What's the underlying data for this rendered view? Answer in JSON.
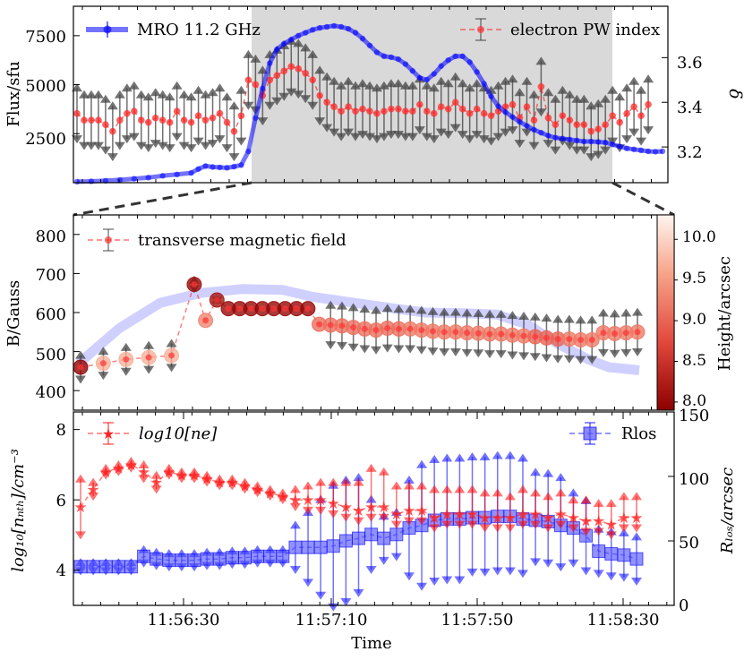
{
  "chart_data": [
    {
      "type": "line",
      "panel": "top",
      "ylabel_left": "Flux/sfu",
      "ylabel_right": "δ",
      "ylim_left": [
        0,
        9000
      ],
      "ylim_right": [
        3.04,
        3.83
      ],
      "yticks_left": [
        "2500",
        "5000",
        "7500"
      ],
      "yticks_right": [
        "3.2",
        "3.4",
        "3.6"
      ],
      "shaded_interval": [
        24,
        74
      ],
      "legend": {
        "left": "MRO 11.2 GHz",
        "right": "electron PW index"
      },
      "series": [
        {
          "name": "MRO 11.2 GHz",
          "color": "#0000ff",
          "x": [
            0,
            2,
            4,
            6,
            8,
            10,
            12,
            14,
            16,
            17,
            18,
            19,
            20,
            21,
            22,
            23,
            24,
            25,
            26,
            27,
            28,
            29,
            30,
            31,
            32,
            33,
            34,
            35,
            36,
            37,
            38,
            39,
            40,
            41,
            42,
            43,
            44,
            45,
            46,
            47,
            48,
            49,
            50,
            51,
            52,
            53,
            54,
            55,
            56,
            57,
            58,
            59,
            60,
            61,
            62,
            63,
            64,
            65,
            66,
            67,
            68,
            69,
            70,
            71,
            72,
            73,
            74,
            75,
            76,
            77,
            78,
            79,
            80,
            81,
            82
          ],
          "values": [
            50,
            70,
            100,
            140,
            200,
            260,
            350,
            420,
            500,
            700,
            850,
            800,
            780,
            760,
            820,
            900,
            1600,
            3300,
            4800,
            6100,
            6800,
            7100,
            7300,
            7500,
            7650,
            7800,
            7900,
            7950,
            8000,
            7950,
            7850,
            7650,
            7350,
            7000,
            6650,
            6450,
            6400,
            6300,
            6050,
            5700,
            5350,
            5250,
            5550,
            5950,
            6250,
            6450,
            6450,
            6150,
            5650,
            5050,
            4400,
            3900,
            3600,
            3350,
            3100,
            2900,
            2700,
            2550,
            2400,
            2300,
            2250,
            2200,
            2150,
            2100,
            2100,
            2080,
            2050,
            1950,
            1850,
            1750,
            1700,
            1650,
            1600,
            1580,
            1600
          ]
        },
        {
          "name": "electron PW index",
          "color": "#ff0000",
          "x": [
            0,
            1,
            2,
            3,
            4,
            5,
            6,
            7,
            8,
            9,
            10,
            11,
            12,
            13,
            14,
            15,
            16,
            17,
            18,
            19,
            20,
            21,
            22,
            23,
            24,
            25,
            26,
            27,
            28,
            29,
            30,
            31,
            32,
            33,
            34,
            35,
            36,
            37,
            38,
            39,
            40,
            41,
            42,
            43,
            44,
            45,
            46,
            47,
            48,
            49,
            50,
            51,
            52,
            53,
            54,
            55,
            56,
            57,
            58,
            59,
            60,
            61,
            62,
            63,
            64,
            65,
            66,
            67,
            68,
            69,
            70,
            71,
            72,
            73,
            74,
            75,
            76,
            77,
            78,
            79,
            80
          ],
          "values": [
            3.35,
            3.32,
            3.32,
            3.32,
            3.3,
            3.27,
            3.32,
            3.35,
            3.36,
            3.32,
            3.31,
            3.33,
            3.32,
            3.31,
            3.36,
            3.32,
            3.31,
            3.34,
            3.32,
            3.33,
            3.35,
            3.31,
            3.27,
            3.34,
            3.5,
            3.48,
            3.43,
            3.5,
            3.52,
            3.54,
            3.56,
            3.55,
            3.53,
            3.5,
            3.43,
            3.4,
            3.38,
            3.36,
            3.38,
            3.36,
            3.37,
            3.36,
            3.35,
            3.36,
            3.37,
            3.37,
            3.36,
            3.36,
            3.39,
            3.36,
            3.35,
            3.38,
            3.37,
            3.4,
            3.37,
            3.35,
            3.37,
            3.35,
            3.34,
            3.36,
            3.38,
            3.39,
            3.33,
            3.38,
            3.32,
            3.47,
            3.33,
            3.3,
            3.34,
            3.32,
            3.3,
            3.3,
            3.27,
            3.28,
            3.3,
            3.34,
            3.31,
            3.35,
            3.38,
            3.34,
            3.39
          ],
          "error": 0.13
        }
      ]
    },
    {
      "type": "scatter",
      "panel": "middle",
      "ylabel": "B/Gauss",
      "ylim": [
        350,
        850
      ],
      "yticks": [
        "400",
        "500",
        "600",
        "700",
        "800"
      ],
      "legend": "transverse magnetic field",
      "colorbar": {
        "label": "Height/arcsec",
        "range": [
          7.9,
          10.3
        ],
        "ticks": [
          "8.0",
          "8.5",
          "9.0",
          "9.5",
          "10.0"
        ]
      },
      "series": [
        {
          "name": "transverse magnetic field",
          "x": [
            0,
            2,
            4,
            6,
            8,
            10,
            11,
            12,
            13,
            14,
            15,
            16,
            17,
            18,
            19,
            20,
            21,
            22,
            23,
            24,
            25,
            26,
            27,
            28,
            29,
            30,
            31,
            32,
            33,
            34,
            35,
            36,
            37,
            38,
            39,
            40,
            41,
            42,
            43,
            44,
            45,
            46,
            47,
            48,
            49
          ],
          "values": [
            460,
            470,
            480,
            485,
            490,
            672,
            580,
            632,
            610,
            610,
            610,
            610,
            610,
            610,
            610,
            610,
            570,
            568,
            566,
            562,
            558,
            555,
            560,
            558,
            558,
            555,
            552,
            550,
            550,
            548,
            547,
            545,
            545,
            542,
            540,
            538,
            535,
            532,
            532,
            530,
            530,
            548,
            546,
            548,
            550
          ],
          "heights": [
            7.95,
            9.7,
            9.7,
            9.7,
            9.7,
            8.05,
            9.3,
            8.15,
            8.0,
            8.0,
            8.0,
            8.0,
            8.0,
            8.0,
            8.0,
            8.0,
            9.1,
            9.1,
            9.1,
            9.1,
            9.1,
            9.1,
            9.1,
            9.1,
            9.2,
            9.2,
            9.2,
            9.2,
            9.2,
            9.2,
            9.2,
            9.2,
            9.2,
            9.2,
            9.2,
            9.0,
            9.0,
            9.0,
            9.2,
            9.2,
            9.2,
            9.2,
            9.2,
            9.2,
            9.2
          ],
          "error": [
            40,
            40,
            40,
            40,
            40,
            20,
            0,
            10,
            0,
            0,
            0,
            0,
            0,
            0,
            0,
            0,
            0,
            60,
            60,
            60,
            60,
            60,
            60,
            60,
            60,
            60,
            60,
            60,
            60,
            60,
            60,
            60,
            60,
            60,
            60,
            60,
            60,
            60,
            60,
            60,
            60,
            60,
            60,
            60,
            60
          ]
        }
      ]
    },
    {
      "type": "scatter",
      "panel": "bottom",
      "ylabel_left": "log₁₀[nₙₜₕ]/cm⁻³",
      "ylabel_right": "Rₗₒₛ/arcsec",
      "xlabel": "Time",
      "xticks": [
        "11:56:30",
        "11:57:10",
        "11:57:50",
        "11:58:30"
      ],
      "ylim_left": [
        3.0,
        8.5
      ],
      "ylim_right": [
        0,
        150
      ],
      "yticks_left": [
        "4",
        "6",
        "8"
      ],
      "yticks_right": [
        "0",
        "50",
        "100",
        "150"
      ],
      "legend": {
        "left": "log10[ne]",
        "right": "Rlos"
      },
      "series": [
        {
          "name": "log10[ne]",
          "color": "#ff0000",
          "values": [
            5.8,
            6.3,
            6.8,
            6.9,
            7.0,
            6.8,
            6.5,
            6.8,
            6.7,
            6.7,
            6.6,
            6.5,
            6.5,
            6.4,
            6.3,
            6.2,
            6.1,
            6.0,
            6.0,
            6.0,
            5.9,
            5.8,
            5.7,
            5.8,
            5.8,
            5.6,
            5.7,
            5.7,
            5.5,
            5.6,
            5.6,
            5.6,
            5.5,
            5.5,
            5.5,
            5.6,
            5.6,
            5.5,
            5.6,
            5.5,
            5.4,
            5.4,
            5.3,
            5.5,
            5.5
          ],
          "error_up": [
            0.9,
            0.3,
            0.2,
            0.2,
            0.2,
            0.3,
            0.3,
            0.2,
            0.2,
            0.2,
            0.2,
            0.2,
            0.2,
            0.2,
            0.2,
            0.2,
            0.2,
            0.4,
            0.5,
            0.6,
            0.7,
            0.8,
            0.9,
            1.2,
            1.1,
            0.9,
            0.8,
            0.8,
            0.9,
            0.8,
            0.8,
            0.8,
            0.8,
            0.8,
            0.7,
            0.8,
            0.7,
            0.7,
            0.7,
            0.6,
            0.7,
            0.6,
            0.7,
            0.7,
            0.7
          ],
          "error_down": [
            0.9,
            0.3,
            0.2,
            0.2,
            0.2,
            0.3,
            0.3,
            0.2,
            0.2,
            0.2,
            0.2,
            0.2,
            0.2,
            0.2,
            0.2,
            0.2,
            0.2,
            0.3,
            0.4,
            0.4,
            0.4,
            0.4,
            0.4,
            0.4,
            0.4,
            0.4,
            0.4,
            0.4,
            0.4,
            0.4,
            0.4,
            0.4,
            0.4,
            0.4,
            0.4,
            0.4,
            0.4,
            0.4,
            0.4,
            0.4,
            0.4,
            0.4,
            0.4,
            0.4,
            0.4
          ]
        },
        {
          "name": "Rlos",
          "color": "#0000ff",
          "values": [
            30,
            30,
            30,
            30,
            30,
            38,
            36,
            35,
            35,
            35,
            36,
            36,
            37,
            37,
            38,
            38,
            38,
            45,
            45,
            45,
            46,
            50,
            52,
            55,
            52,
            55,
            60,
            62,
            66,
            67,
            67,
            68,
            68,
            69,
            69,
            67,
            66,
            65,
            62,
            60,
            54,
            42,
            40,
            39,
            36
          ],
          "error_up": [
            6,
            6,
            6,
            6,
            6,
            8,
            8,
            8,
            8,
            8,
            8,
            8,
            8,
            8,
            8,
            8,
            8,
            20,
            30,
            40,
            50,
            50,
            50,
            30,
            20,
            20,
            40,
            50,
            50,
            50,
            50,
            50,
            50,
            50,
            50,
            50,
            40,
            40,
            40,
            30,
            30,
            20,
            20,
            20,
            20
          ],
          "error_down": [
            6,
            6,
            6,
            6,
            6,
            8,
            8,
            8,
            8,
            8,
            8,
            8,
            8,
            8,
            8,
            8,
            8,
            20,
            30,
            40,
            50,
            50,
            45,
            30,
            20,
            20,
            40,
            50,
            50,
            50,
            50,
            45,
            45,
            45,
            45,
            45,
            35,
            35,
            35,
            30,
            30,
            20,
            20,
            20,
            20
          ]
        }
      ]
    }
  ]
}
